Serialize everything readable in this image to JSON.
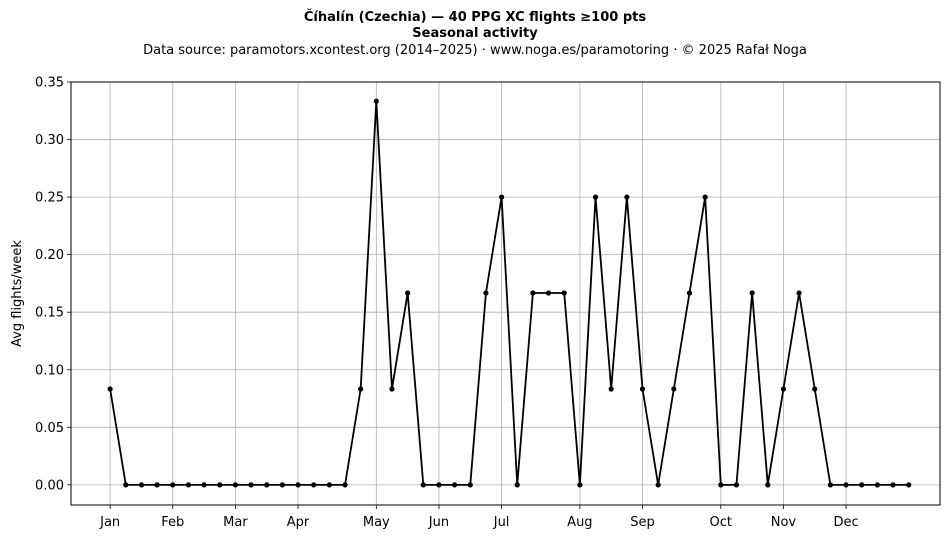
{
  "chart_data": {
    "type": "line",
    "title": "Číhalín (Czechia)  —  40 PPG XC flights ≥100 pts",
    "subtitle": "Seasonal activity",
    "source_line": "Data source: paramotors.xcontest.org (2014–2025)  ·  www.noga.es/paramotoring  ·  © 2025 Rafał Noga",
    "xlabel": "",
    "ylabel": "Avg flights/week",
    "xlim": [
      -2.5,
      53
    ],
    "ylim": [
      -0.0175,
      0.35
    ],
    "grid": true,
    "legend": "none",
    "line_color": "#000000",
    "x_ticks": [
      {
        "label": "Jan",
        "x": 0
      },
      {
        "label": "Feb",
        "x": 4
      },
      {
        "label": "Mar",
        "x": 8
      },
      {
        "label": "Apr",
        "x": 12
      },
      {
        "label": "May",
        "x": 17
      },
      {
        "label": "Jun",
        "x": 21
      },
      {
        "label": "Jul",
        "x": 25
      },
      {
        "label": "Aug",
        "x": 30
      },
      {
        "label": "Sep",
        "x": 34
      },
      {
        "label": "Oct",
        "x": 39
      },
      {
        "label": "Nov",
        "x": 43
      },
      {
        "label": "Dec",
        "x": 47
      }
    ],
    "y_ticks": [
      "0.00",
      "0.05",
      "0.10",
      "0.15",
      "0.20",
      "0.25",
      "0.30",
      "0.35"
    ],
    "x": [
      0,
      1,
      2,
      3,
      4,
      5,
      6,
      7,
      8,
      9,
      10,
      11,
      12,
      13,
      14,
      15,
      16,
      17,
      18,
      19,
      20,
      21,
      22,
      23,
      24,
      25,
      26,
      27,
      28,
      29,
      30,
      31,
      32,
      33,
      34,
      35,
      36,
      37,
      38,
      39,
      40,
      41,
      42,
      43,
      44,
      45,
      46,
      47,
      48,
      49,
      50,
      51
    ],
    "values": [
      0.0833,
      0,
      0,
      0,
      0,
      0,
      0,
      0,
      0,
      0,
      0,
      0,
      0,
      0,
      0,
      0,
      0.0833,
      0.3333,
      0.0833,
      0.1667,
      0,
      0,
      0,
      0,
      0.1667,
      0.25,
      0,
      0.1667,
      0.1667,
      0.1667,
      0,
      0.25,
      0.0833,
      0.25,
      0.0833,
      0,
      0.0833,
      0.1667,
      0.25,
      0,
      0,
      0.1667,
      0,
      0.0833,
      0.1667,
      0.0833,
      0,
      0,
      0,
      0,
      0,
      0
    ]
  }
}
